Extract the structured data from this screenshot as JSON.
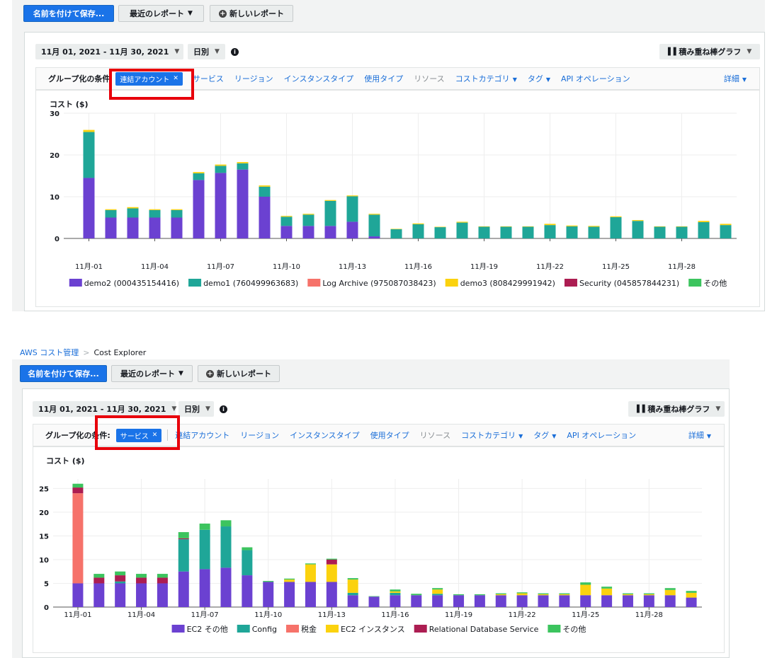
{
  "top": {
    "save_label": "名前を付けて保存...",
    "recent_label": "最近のレポート",
    "new_label": "新しいレポート",
    "date_range": "11月 01, 2021 - 11月 30, 2021",
    "granularity": "日別",
    "chart_type": "積み重ね棒グラフ",
    "group_label": "グループ化の条件",
    "chip_label": "連結アカウント",
    "group_items": [
      "サービス",
      "リージョン",
      "インスタンスタイプ",
      "使用タイプ",
      "リソース",
      "コストカテゴリ",
      "タグ",
      "API オペレーション"
    ],
    "detail_label": "詳細",
    "ylabel": "コスト ($)"
  },
  "bottom": {
    "breadcrumb_root": "AWS コスト管理",
    "breadcrumb_current": "Cost Explorer",
    "save_label": "名前を付けて保存...",
    "recent_label": "最近のレポート",
    "new_label": "新しいレポート",
    "date_range": "11月 01, 2021 - 11月 30, 2021",
    "granularity": "日別",
    "chart_type": "積み重ね棒グラフ",
    "group_label": "グループ化の条件:",
    "chip_label": "サービス",
    "group_items": [
      "連結アカウント",
      "リージョン",
      "インスタンスタイプ",
      "使用タイプ",
      "リソース",
      "コストカテゴリ",
      "タグ",
      "API オペレーション"
    ],
    "detail_label": "詳細",
    "ylabel": "コスト ($)"
  },
  "colors": {
    "primary": "#1a73e8",
    "highlight_box": "#e8000b"
  },
  "chart_data": [
    {
      "type": "bar",
      "stacked": true,
      "title": "",
      "ylabel": "コスト ($)",
      "ylim": [
        0,
        30
      ],
      "yticks": [
        0,
        10,
        20,
        30
      ],
      "categories": [
        "11月-01",
        "11月-02",
        "11月-03",
        "11月-04",
        "11月-05",
        "11月-06",
        "11月-07",
        "11月-08",
        "11月-09",
        "11月-10",
        "11月-11",
        "11月-12",
        "11月-13",
        "11月-14",
        "11月-15",
        "11月-16",
        "11月-17",
        "11月-18",
        "11月-19",
        "11月-20",
        "11月-21",
        "11月-22",
        "11月-23",
        "11月-24",
        "11月-25",
        "11月-26",
        "11月-27",
        "11月-28",
        "11月-29",
        "11月-30"
      ],
      "xtick_labels": [
        "11月-01",
        "11月-04",
        "11月-07",
        "11月-10",
        "11月-13",
        "11月-16",
        "11月-19",
        "11月-22",
        "11月-25",
        "11月-28"
      ],
      "xtick_index": [
        0,
        3,
        6,
        9,
        12,
        15,
        18,
        21,
        24,
        27
      ],
      "series": [
        {
          "name": "demo2 (000435154416)",
          "color": "#6b41d1",
          "values": [
            14.5,
            5,
            5,
            5,
            5,
            14,
            15.7,
            16.5,
            10,
            3,
            3,
            3,
            4,
            0.5,
            0,
            0,
            0,
            0,
            0,
            0,
            0,
            0,
            0,
            0,
            0,
            0,
            0,
            0,
            0,
            0
          ]
        },
        {
          "name": "demo1 (760499963683)",
          "color": "#1fa698",
          "values": [
            11,
            1.8,
            2.2,
            1.8,
            1.8,
            1.6,
            1.7,
            1.5,
            2.4,
            2.2,
            2.7,
            6,
            6.1,
            5.2,
            2.2,
            3.4,
            2.7,
            3.8,
            2.8,
            2.8,
            2.8,
            3.2,
            2.9,
            2.8,
            5.1,
            4.2,
            2.8,
            2.8,
            3.9,
            3.2
          ]
        },
        {
          "name": "Log Archive (975087038423)",
          "color": "#f6726a",
          "values": [
            0,
            0,
            0,
            0,
            0,
            0,
            0,
            0,
            0,
            0,
            0,
            0,
            0,
            0,
            0,
            0,
            0,
            0,
            0,
            0,
            0,
            0,
            0,
            0,
            0,
            0,
            0,
            0,
            0,
            0
          ]
        },
        {
          "name": "demo3 (808429991942)",
          "color": "#fbd20e",
          "values": [
            0.5,
            0.2,
            0.3,
            0.2,
            0.2,
            0.3,
            0.3,
            0.3,
            0.3,
            0.2,
            0.2,
            0.2,
            0.2,
            0.2,
            0.1,
            0.2,
            0.1,
            0.2,
            0.1,
            0.1,
            0.1,
            0.3,
            0.2,
            0.2,
            0.2,
            0.2,
            0.1,
            0.1,
            0.3,
            0.3
          ]
        },
        {
          "name": "Security (045857844231)",
          "color": "#ac1d52",
          "values": [
            0,
            0,
            0,
            0,
            0,
            0,
            0,
            0,
            0,
            0,
            0,
            0,
            0,
            0,
            0,
            0,
            0,
            0,
            0,
            0,
            0,
            0,
            0,
            0,
            0,
            0,
            0,
            0,
            0,
            0
          ]
        },
        {
          "name": "その他",
          "color": "#3cc45e",
          "values": [
            0,
            0,
            0,
            0,
            0,
            0,
            0,
            0,
            0,
            0,
            0,
            0,
            0,
            0,
            0,
            0,
            0,
            0,
            0,
            0,
            0,
            0,
            0,
            0,
            0,
            0,
            0,
            0,
            0,
            0
          ]
        }
      ]
    },
    {
      "type": "bar",
      "stacked": true,
      "title": "",
      "ylabel": "コスト ($)",
      "ylim": [
        0,
        27
      ],
      "yticks": [
        0,
        5,
        10,
        15,
        20,
        25
      ],
      "categories": [
        "11月-01",
        "11月-02",
        "11月-03",
        "11月-04",
        "11月-05",
        "11月-06",
        "11月-07",
        "11月-08",
        "11月-09",
        "11月-10",
        "11月-11",
        "11月-12",
        "11月-13",
        "11月-14",
        "11月-15",
        "11月-16",
        "11月-17",
        "11月-18",
        "11月-19",
        "11月-20",
        "11月-21",
        "11月-22",
        "11月-23",
        "11月-24",
        "11月-25",
        "11月-26",
        "11月-27",
        "11月-28",
        "11月-29",
        "11月-30"
      ],
      "xtick_labels": [
        "11月-01",
        "11月-04",
        "11月-07",
        "11月-10",
        "11月-13",
        "11月-16",
        "11月-19",
        "11月-22",
        "11月-25",
        "11月-28"
      ],
      "xtick_index": [
        0,
        3,
        6,
        9,
        12,
        15,
        18,
        21,
        24,
        27
      ],
      "series": [
        {
          "name": "EC2 その他",
          "color": "#6b41d1",
          "values": [
            5,
            5,
            5,
            5,
            5,
            7.5,
            8,
            8.3,
            6.7,
            5.3,
            5.3,
            5.3,
            5.3,
            2.5,
            2.2,
            2.5,
            2.5,
            2.5,
            2.5,
            2.5,
            2.5,
            2.5,
            2.5,
            2.5,
            2.5,
            2.5,
            2.5,
            2.5,
            2.5,
            2.0
          ]
        },
        {
          "name": "Config",
          "color": "#1fa698",
          "values": [
            0,
            0,
            0.4,
            0,
            0,
            6.8,
            8.3,
            8.7,
            5.3,
            0,
            0,
            0,
            0,
            0.5,
            0,
            0.5,
            0,
            0.3,
            0,
            0,
            0,
            0,
            0,
            0,
            0,
            0,
            0,
            0,
            0,
            0
          ]
        },
        {
          "name": "税金",
          "color": "#f6726a",
          "values": [
            19,
            0,
            0,
            0,
            0,
            0,
            0,
            0,
            0,
            0,
            0,
            0,
            0,
            0,
            0,
            0,
            0,
            0,
            0,
            0,
            0,
            0,
            0,
            0,
            0,
            0,
            0,
            0,
            0,
            0
          ]
        },
        {
          "name": "EC2 インスタンス",
          "color": "#fbd20e",
          "values": [
            0,
            0,
            0,
            0,
            0,
            0,
            0,
            0,
            0,
            0,
            0.5,
            3.7,
            3.7,
            2.8,
            0,
            0.3,
            0,
            0.9,
            0,
            0,
            0.2,
            0.4,
            0.2,
            0.2,
            2.2,
            1.4,
            0.2,
            0.2,
            1.1,
            1.0
          ]
        },
        {
          "name": "Relational Database Service",
          "color": "#ac1d52",
          "values": [
            1.2,
            1.2,
            1.3,
            1.2,
            1.2,
            0.2,
            0,
            0,
            0,
            0,
            0,
            0,
            1.0,
            0,
            0,
            0,
            0,
            0,
            0,
            0,
            0,
            0,
            0,
            0,
            0,
            0,
            0,
            0,
            0,
            0
          ]
        },
        {
          "name": "その他",
          "color": "#3cc45e",
          "values": [
            0.8,
            0.8,
            0.8,
            0.8,
            0.8,
            1.3,
            1.3,
            1.3,
            0.6,
            0.2,
            0.2,
            0.2,
            0.2,
            0.3,
            0.1,
            0.4,
            0.3,
            0.3,
            0.2,
            0.2,
            0.2,
            0.2,
            0.2,
            0.2,
            0.5,
            0.4,
            0.2,
            0.2,
            0.4,
            0.4
          ]
        }
      ]
    }
  ]
}
